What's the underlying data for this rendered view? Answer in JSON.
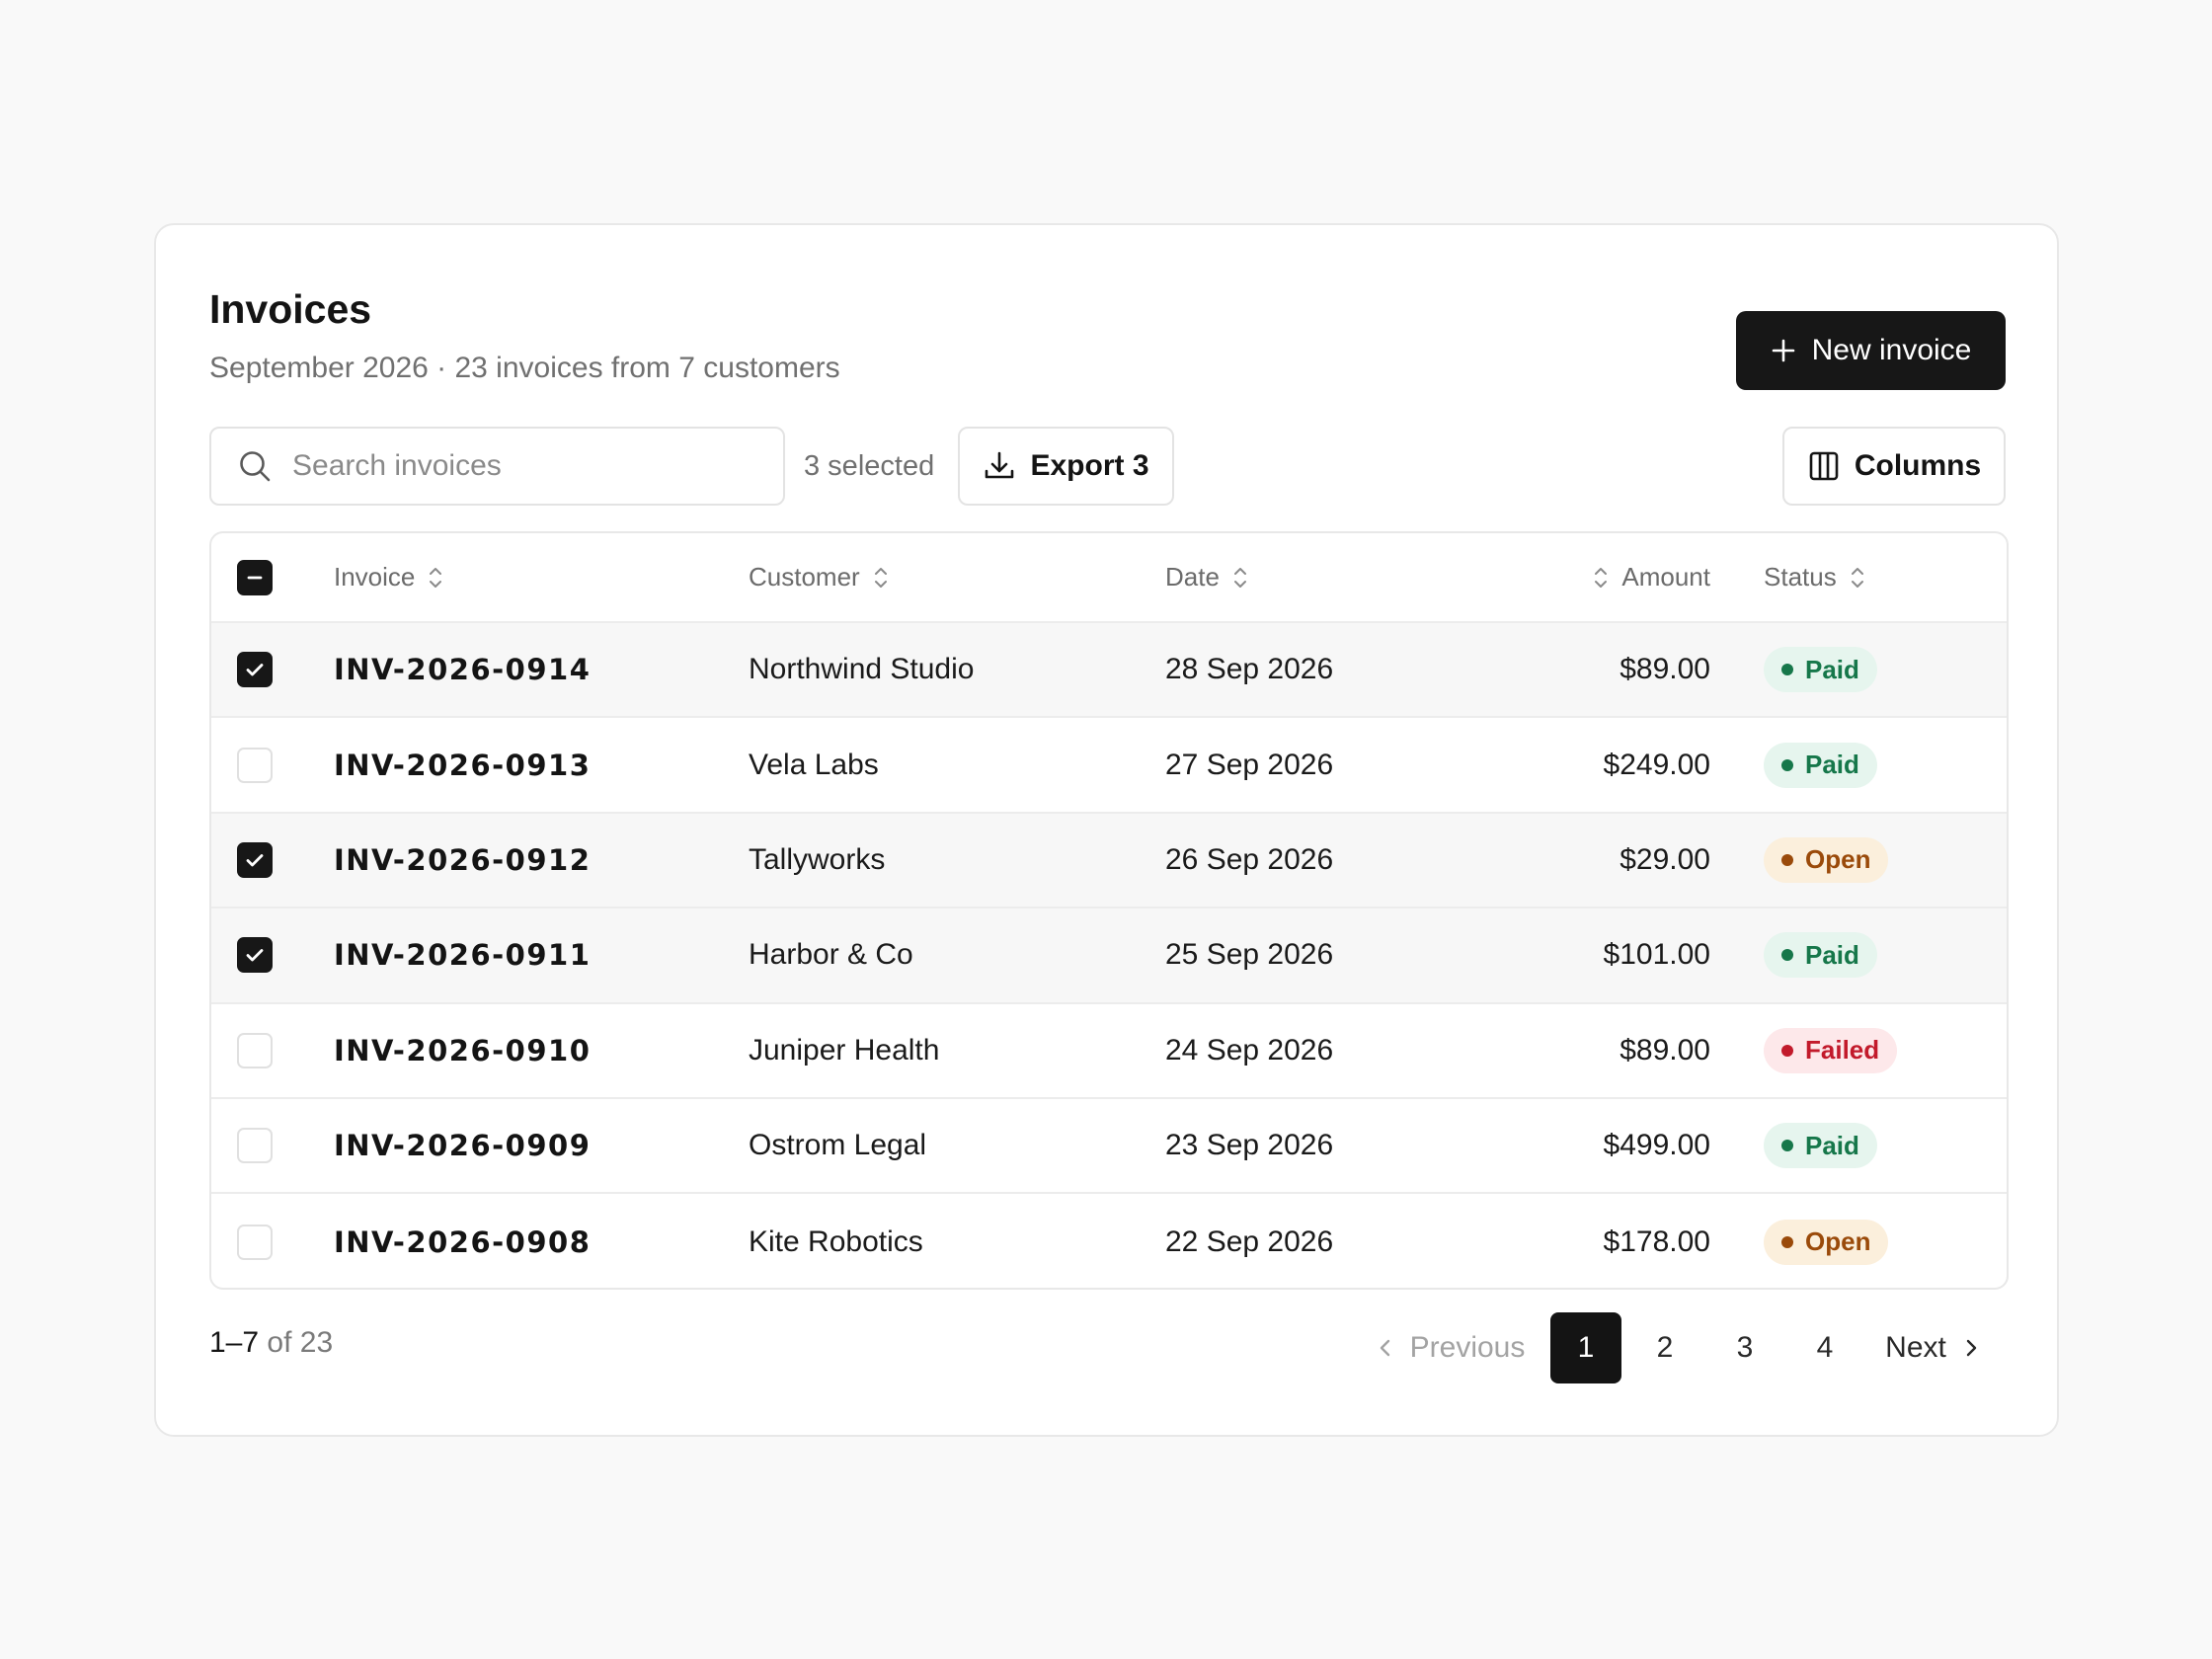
{
  "header": {
    "title": "Invoices",
    "subtitle": "September 2026 · 23 invoices from 7 customers",
    "new_invoice_label": "New invoice"
  },
  "toolbar": {
    "search_placeholder": "Search invoices",
    "selected_label": "3 selected",
    "export_label": "Export 3",
    "columns_label": "Columns"
  },
  "table": {
    "columns": [
      "Invoice",
      "Customer",
      "Date",
      "Amount",
      "Status"
    ],
    "select_all_state": "indeterminate",
    "rows": [
      {
        "selected": true,
        "invoice": "INV-2026-0914",
        "customer": "Northwind Studio",
        "date": "28 Sep 2026",
        "amount": "$89.00",
        "status": "Paid"
      },
      {
        "selected": false,
        "invoice": "INV-2026-0913",
        "customer": "Vela Labs",
        "date": "27 Sep 2026",
        "amount": "$249.00",
        "status": "Paid"
      },
      {
        "selected": true,
        "invoice": "INV-2026-0912",
        "customer": "Tallyworks",
        "date": "26 Sep 2026",
        "amount": "$29.00",
        "status": "Open"
      },
      {
        "selected": true,
        "invoice": "INV-2026-0911",
        "customer": "Harbor & Co",
        "date": "25 Sep 2026",
        "amount": "$101.00",
        "status": "Paid"
      },
      {
        "selected": false,
        "invoice": "INV-2026-0910",
        "customer": "Juniper Health",
        "date": "24 Sep 2026",
        "amount": "$89.00",
        "status": "Failed"
      },
      {
        "selected": false,
        "invoice": "INV-2026-0909",
        "customer": "Ostrom Legal",
        "date": "23 Sep 2026",
        "amount": "$499.00",
        "status": "Paid"
      },
      {
        "selected": false,
        "invoice": "INV-2026-0908",
        "customer": "Kite Robotics",
        "date": "22 Sep 2026",
        "amount": "$178.00",
        "status": "Open"
      }
    ]
  },
  "footer": {
    "range": "1–7",
    "range_total": "of 23",
    "prev_label": "Previous",
    "next_label": "Next",
    "pages": [
      "1",
      "2",
      "3",
      "4"
    ],
    "current_page": "1"
  },
  "colors": {
    "primary": "#171717",
    "paid": "#16774a",
    "open": "#9a4a0a",
    "failed": "#c21a2b"
  },
  "icons": [
    "plus-icon",
    "search-icon",
    "download-icon",
    "columns-icon",
    "sort-icon",
    "check-icon",
    "minus-icon",
    "chevron-left-icon",
    "chevron-right-icon"
  ]
}
